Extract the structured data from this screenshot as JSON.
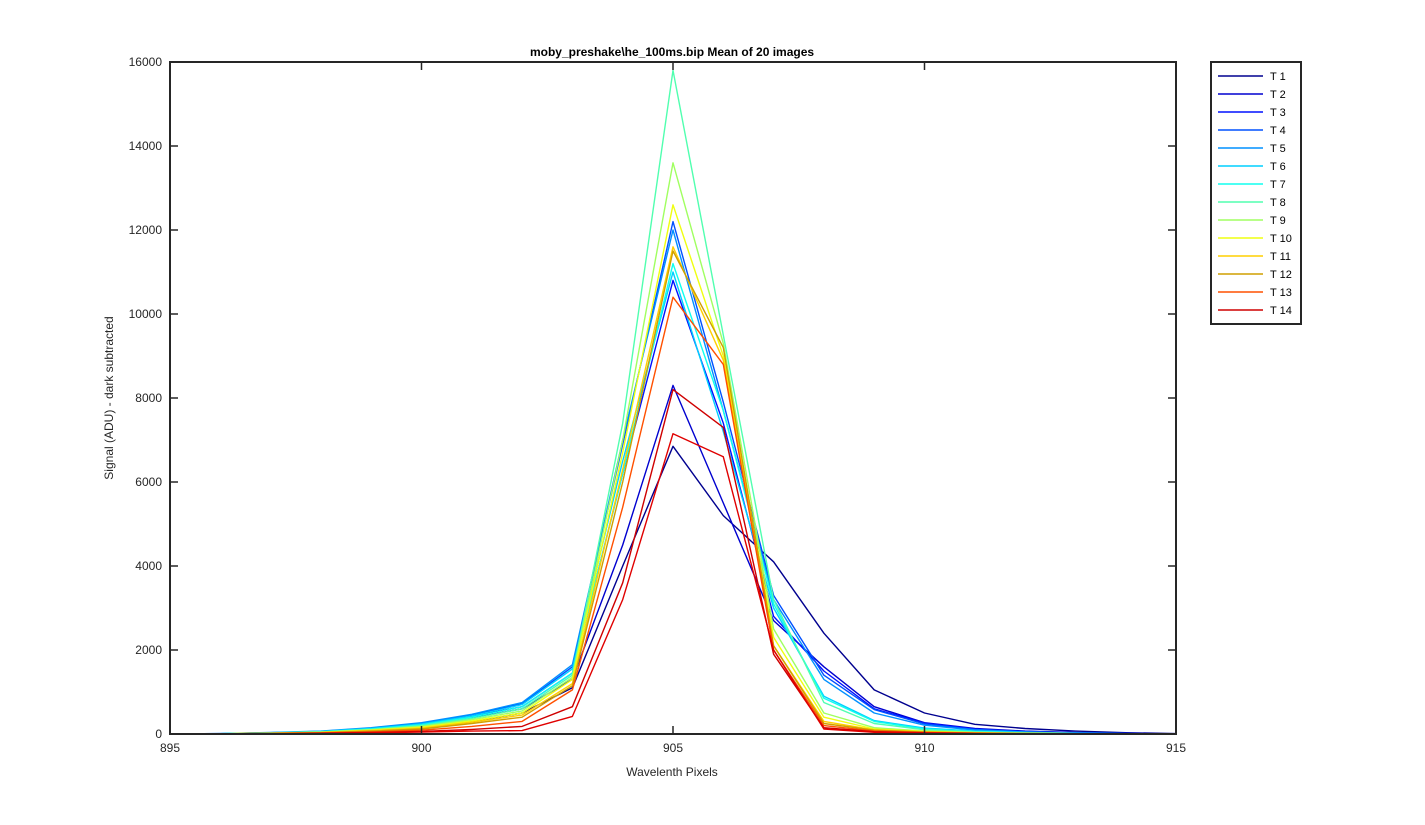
{
  "chart_data": {
    "type": "line",
    "title": "moby_preshake\\he_100ms.bip  Mean of 20 images",
    "xlabel": "Wavelenth Pixels",
    "ylabel": "Signal (ADU) - dark subtracted",
    "xlim": [
      895,
      915
    ],
    "ylim": [
      0,
      16000
    ],
    "xticks": [
      895,
      900,
      905,
      910,
      915
    ],
    "yticks": [
      0,
      2000,
      4000,
      6000,
      8000,
      10000,
      12000,
      14000,
      16000
    ],
    "grid": false,
    "legend_position": "outside-top-right",
    "x": [
      895,
      896,
      897,
      898,
      899,
      900,
      901,
      902,
      903,
      904,
      905,
      906,
      907,
      908,
      909,
      910,
      911,
      912,
      913,
      914,
      915
    ],
    "series": [
      {
        "name": "T 1",
        "color": "#00008f",
        "values": [
          0,
          5,
          15,
          35,
          80,
          150,
          300,
          500,
          1100,
          4000,
          6850,
          5200,
          4100,
          2400,
          1050,
          500,
          230,
          130,
          70,
          30,
          10
        ]
      },
      {
        "name": "T 2",
        "color": "#0000cf",
        "values": [
          0,
          5,
          20,
          45,
          100,
          200,
          380,
          600,
          1300,
          4500,
          8300,
          5500,
          2700,
          1600,
          650,
          270,
          130,
          70,
          35,
          15,
          5
        ]
      },
      {
        "name": "T 3",
        "color": "#0010ff",
        "values": [
          0,
          8,
          25,
          55,
          120,
          230,
          420,
          650,
          1450,
          6200,
          10800,
          7400,
          2800,
          1500,
          600,
          260,
          120,
          60,
          30,
          12,
          5
        ]
      },
      {
        "name": "T 4",
        "color": "#0050ff",
        "values": [
          0,
          10,
          30,
          65,
          140,
          250,
          460,
          720,
          1600,
          6900,
          12200,
          7900,
          3300,
          1400,
          580,
          240,
          110,
          55,
          25,
          10,
          4
        ]
      },
      {
        "name": "T 5",
        "color": "#0090ff",
        "values": [
          0,
          10,
          35,
          70,
          150,
          270,
          470,
          750,
          1650,
          7000,
          12000,
          7700,
          3200,
          1300,
          500,
          210,
          95,
          45,
          20,
          8,
          3
        ]
      },
      {
        "name": "T 6",
        "color": "#00cfff",
        "values": [
          0,
          8,
          30,
          60,
          130,
          240,
          430,
          700,
          1550,
          6500,
          11000,
          7200,
          3000,
          900,
          320,
          140,
          70,
          35,
          15,
          6,
          2
        ]
      },
      {
        "name": "T 7",
        "color": "#10ffef",
        "values": [
          0,
          7,
          28,
          55,
          120,
          220,
          400,
          650,
          1450,
          6200,
          11200,
          7700,
          3100,
          850,
          300,
          120,
          60,
          30,
          12,
          5,
          2
        ]
      },
      {
        "name": "T 8",
        "color": "#50ffaf",
        "values": [
          0,
          6,
          25,
          50,
          110,
          200,
          370,
          600,
          1400,
          7400,
          15800,
          9500,
          3200,
          750,
          250,
          100,
          50,
          25,
          10,
          4,
          1
        ]
      },
      {
        "name": "T 9",
        "color": "#a0ff60",
        "values": [
          0,
          5,
          22,
          45,
          100,
          180,
          340,
          550,
          1350,
          7000,
          13600,
          9300,
          2500,
          500,
          150,
          70,
          35,
          18,
          8,
          3,
          1
        ]
      },
      {
        "name": "T 10",
        "color": "#efff10",
        "values": [
          0,
          5,
          20,
          40,
          90,
          160,
          310,
          500,
          1300,
          6700,
          12600,
          9000,
          2300,
          400,
          120,
          60,
          30,
          15,
          7,
          3,
          1
        ]
      },
      {
        "name": "T 11",
        "color": "#ffcf00",
        "values": [
          0,
          4,
          18,
          35,
          80,
          140,
          280,
          450,
          1200,
          6300,
          11600,
          8900,
          2100,
          300,
          100,
          50,
          25,
          12,
          6,
          2,
          1
        ]
      },
      {
        "name": "T 12",
        "color": "#cf9f00",
        "values": [
          0,
          4,
          16,
          32,
          70,
          120,
          250,
          400,
          1150,
          6000,
          11500,
          9200,
          2100,
          250,
          90,
          45,
          22,
          11,
          5,
          2,
          1
        ]
      },
      {
        "name": "T 13",
        "color": "#ff5000",
        "values": [
          0,
          3,
          12,
          25,
          50,
          90,
          180,
          300,
          1050,
          5400,
          10400,
          8800,
          2000,
          200,
          70,
          35,
          18,
          9,
          4,
          2,
          1
        ]
      },
      {
        "name": "T 14",
        "color": "#cf0000",
        "values": [
          0,
          2,
          8,
          18,
          35,
          60,
          110,
          180,
          650,
          3600,
          8200,
          7300,
          1900,
          150,
          55,
          28,
          14,
          7,
          3,
          1,
          0
        ]
      },
      {
        "name": "",
        "color": "#e00000",
        "values": [
          0,
          2,
          6,
          14,
          28,
          45,
          70,
          80,
          420,
          3200,
          7150,
          6600,
          2000,
          120,
          40,
          20,
          10,
          5,
          2,
          1,
          0
        ]
      }
    ]
  }
}
